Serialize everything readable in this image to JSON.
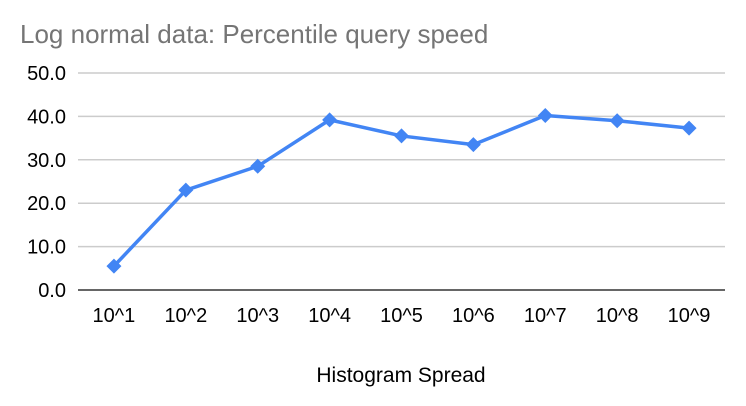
{
  "chart_data": {
    "type": "line",
    "title": "Log normal data: Percentile query speed",
    "xlabel": "Histogram Spread",
    "ylabel": "",
    "categories": [
      "10^1",
      "10^2",
      "10^3",
      "10^4",
      "10^5",
      "10^6",
      "10^7",
      "10^8",
      "10^9"
    ],
    "series": [
      {
        "values": [
          5.5,
          23.0,
          28.5,
          39.2,
          35.5,
          33.5,
          40.2,
          39.0,
          37.3
        ],
        "color": "#4285f4",
        "marker": "diamond"
      }
    ],
    "ylim": [
      0,
      50
    ],
    "yticks": [
      "0.0",
      "10.0",
      "20.0",
      "30.0",
      "40.0",
      "50.0"
    ],
    "grid": true,
    "legend": "none"
  }
}
